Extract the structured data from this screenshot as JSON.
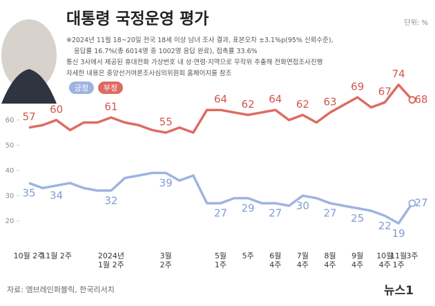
{
  "chart_data": {
    "type": "line",
    "title": "대통령 국정운영 평가",
    "unit": "단위: %",
    "notes": [
      "※2024년 11월 18~20일 전국 18세 이상 남녀 조사 결과, 표본오차 ±3.1%p(95% 신뢰수준),",
      "응답률 16.7%(총 6014명 중 1002명 응답 완료), 접촉률 33.6%",
      "통신 3사에서 제공된 휴대전화 가상번호 내 성·연령·지역으로 무작위 추출해 전화면접조사진행",
      "자세한 내용은 중앙선거여론조사심의위원회 홈페이지를 참조"
    ],
    "source": "자료: 엠브레인퍼블릭, 한국리서치",
    "logo": "뉴스1",
    "categories": [
      "10월 2주",
      null,
      "11월 2주",
      null,
      null,
      null,
      "2024년\n1월 2주",
      null,
      null,
      null,
      "3월\n2주",
      null,
      null,
      null,
      "5월\n1주",
      null,
      "5주",
      null,
      "6월\n4주",
      null,
      "7월\n4주",
      null,
      "8월\n4주",
      null,
      "9월\n4주",
      null,
      "10월\n4주",
      "11월\n1주",
      "3주"
    ],
    "series": [
      {
        "name": "긍정",
        "color": "#9db3e0",
        "label_color": "#7f9bd3",
        "values": [
          35,
          33,
          34,
          35,
          33,
          32,
          32,
          37,
          38,
          39,
          39,
          36,
          38,
          27,
          27,
          29,
          29,
          27,
          27,
          26,
          30,
          29,
          27,
          26,
          25,
          24,
          22,
          19,
          27
        ],
        "value_labels": [
          "35",
          null,
          "34",
          null,
          null,
          null,
          "32",
          null,
          null,
          null,
          "39",
          null,
          null,
          null,
          "27",
          null,
          "29",
          null,
          "27",
          null,
          "30",
          null,
          "27",
          null,
          "25",
          null,
          "22",
          "19",
          "27"
        ]
      },
      {
        "name": "부정",
        "color": "#de6b62",
        "label_color": "#d2554c",
        "values": [
          57,
          58,
          60,
          56,
          59,
          59,
          61,
          59,
          58,
          56,
          55,
          57,
          55,
          64,
          64,
          63,
          62,
          63,
          64,
          60,
          62,
          59,
          63,
          66,
          69,
          65,
          67,
          74,
          68
        ],
        "value_labels": [
          "57",
          null,
          "60",
          null,
          null,
          null,
          "61",
          null,
          null,
          null,
          "55",
          null,
          null,
          null,
          "64",
          null,
          "62",
          null,
          "64",
          null,
          "62",
          null,
          "63",
          null,
          "69",
          null,
          "67",
          "74",
          "68"
        ]
      }
    ],
    "ylim": [
      15,
      75
    ],
    "yticks": [
      20,
      30,
      40,
      50,
      60
    ],
    "grid": false
  }
}
